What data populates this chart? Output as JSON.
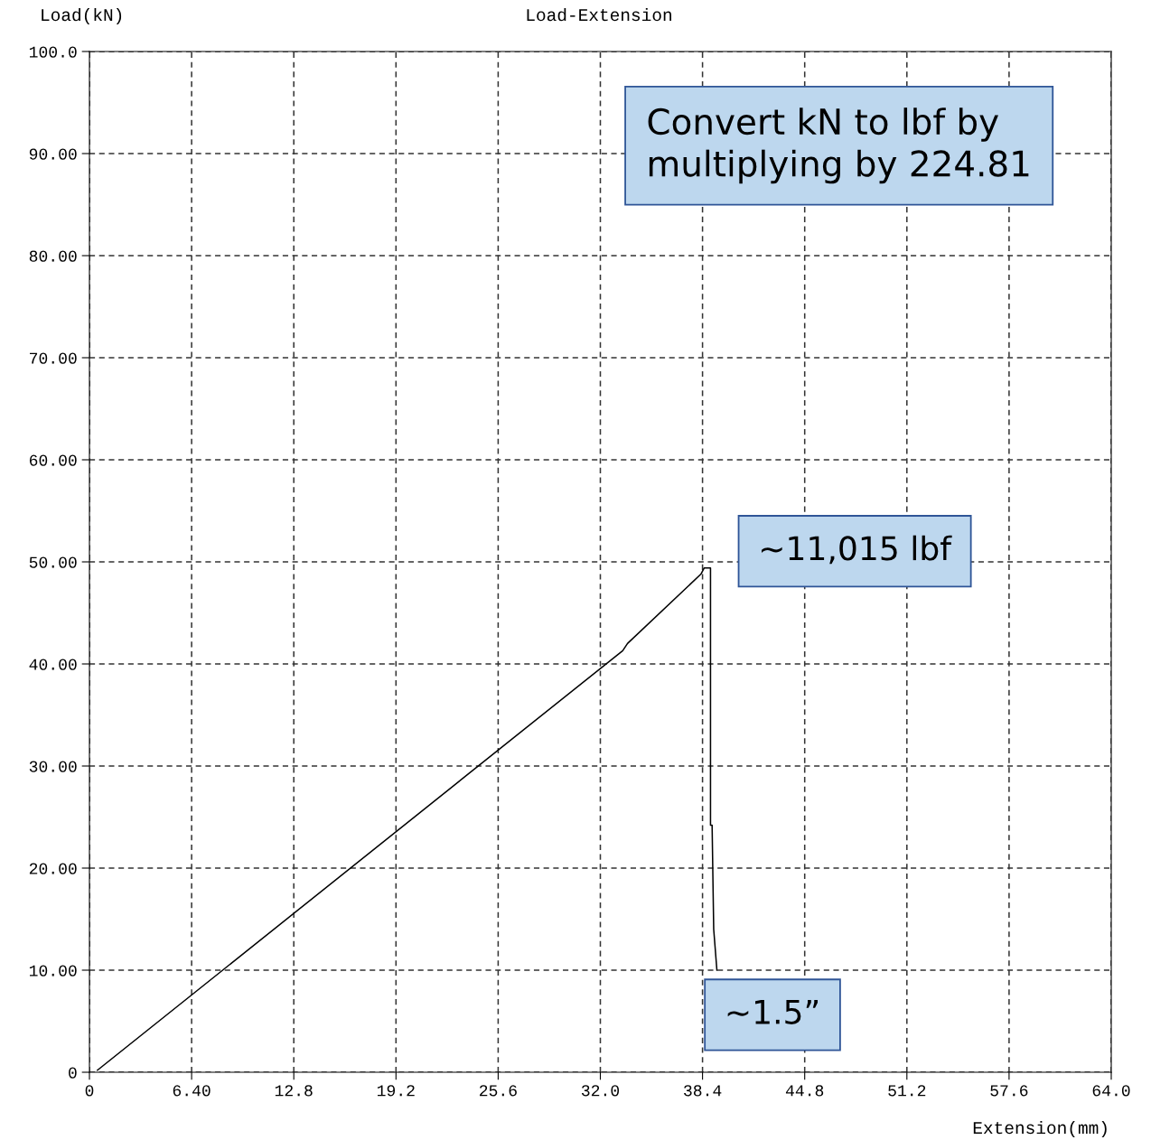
{
  "chart_data": {
    "type": "line",
    "title": "Load-Extension",
    "xlabel": "Extension(mm)",
    "ylabel": "Load(kN)",
    "x": [
      0.5,
      33.4,
      33.7,
      38.3,
      38.5,
      38.9,
      38.9,
      39.0,
      39.1,
      39.3
    ],
    "series": [
      {
        "color": "#000000",
        "values": [
          0.2,
          41.3,
          42.0,
          48.8,
          49.4,
          49.4,
          24.2,
          24.2,
          14.0,
          10.0
        ]
      }
    ],
    "xlim": [
      0,
      64
    ],
    "xticks": [
      0,
      {
        "value": 6.4,
        "label": "6.40"
      },
      {
        "value": 12.8,
        "label": "12.8"
      },
      {
        "value": 19.2,
        "label": "19.2"
      },
      {
        "value": 25.6,
        "label": "25.6"
      },
      {
        "value": 32,
        "label": "32.0"
      },
      {
        "value": 38.4,
        "label": "38.4"
      },
      {
        "value": 44.8,
        "label": "44.8"
      },
      {
        "value": 51.2,
        "label": "51.2"
      },
      {
        "value": 57.6,
        "label": "57.6"
      },
      {
        "value": 64,
        "label": "64.0"
      }
    ],
    "ylim": [
      0,
      100
    ],
    "yticks": [
      0,
      {
        "value": 10,
        "label": "10.00"
      },
      {
        "value": 20,
        "label": "20.00"
      },
      {
        "value": 30,
        "label": "30.00"
      },
      {
        "value": 40,
        "label": "40.00"
      },
      {
        "value": 50,
        "label": "50.00"
      },
      {
        "value": 60,
        "label": "60.00"
      },
      {
        "value": 70,
        "label": "70.00"
      },
      {
        "value": 80,
        "label": "80.00"
      },
      {
        "value": 90,
        "label": "90.00"
      },
      {
        "value": 100,
        "label": "100.0"
      }
    ],
    "grid": true,
    "marker": "none",
    "line_style": "solid",
    "annotations": [
      "Convert kN to lbf by\nmultiplying by 224.81",
      {
        "text": "~11,015 lbf",
        "x": 38.9,
        "y": 49.4
      },
      {
        "text": "~1.5”",
        "x": 39.3,
        "y": 10.0
      }
    ]
  }
}
